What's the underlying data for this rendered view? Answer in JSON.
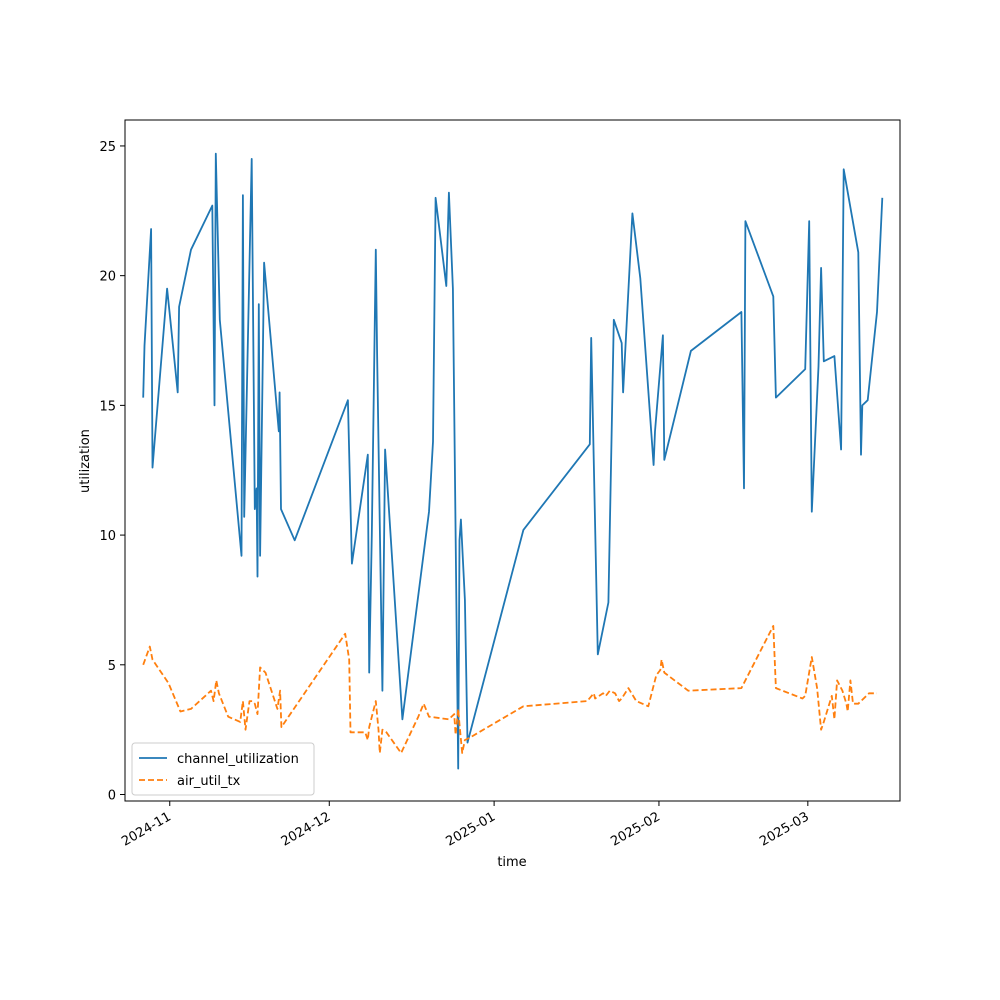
{
  "chart_data": {
    "type": "line",
    "title": "",
    "xlabel": "time",
    "ylabel": "utilization",
    "x_tick_labels": [
      "2024-11",
      "2024-12",
      "2025-01",
      "2025-02",
      "2025-03"
    ],
    "x_tick_dates": [
      "2024-11-01",
      "2024-12-01",
      "2025-01-01",
      "2025-02-01",
      "2025-03-01"
    ],
    "y_ticks": [
      0,
      5,
      10,
      15,
      20,
      25
    ],
    "x_range": [
      "2024-10-23T14:00",
      "2025-03-18T08:00"
    ],
    "ylim": [
      -0.25,
      26.0
    ],
    "grid": false,
    "legend_position": "lower-left",
    "series": [
      {
        "name": "channel_utilization",
        "color": "#1f77b4",
        "style": "solid",
        "points": [
          [
            "2024-10-27T00:00",
            15.3
          ],
          [
            "2024-10-27T06:00",
            17.3
          ],
          [
            "2024-10-28T12:00",
            21.8
          ],
          [
            "2024-10-28T18:00",
            12.6
          ],
          [
            "2024-10-31T12:00",
            19.5
          ],
          [
            "2024-11-01T00:00",
            18.5
          ],
          [
            "2024-11-02T12:00",
            15.5
          ],
          [
            "2024-11-02T18:00",
            18.8
          ],
          [
            "2024-11-05T00:00",
            21.0
          ],
          [
            "2024-11-09T00:00",
            22.7
          ],
          [
            "2024-11-09T10:00",
            15.0
          ],
          [
            "2024-11-09T16:00",
            24.7
          ],
          [
            "2024-11-10T10:00",
            18.3
          ],
          [
            "2024-11-14T12:00",
            9.2
          ],
          [
            "2024-11-14T18:00",
            23.1
          ],
          [
            "2024-11-15T00:00",
            10.7
          ],
          [
            "2024-11-16T10:00",
            24.5
          ],
          [
            "2024-11-17T00:00",
            11.0
          ],
          [
            "2024-11-17T08:00",
            11.8
          ],
          [
            "2024-11-17T12:00",
            8.4
          ],
          [
            "2024-11-17T18:00",
            18.9
          ],
          [
            "2024-11-18T00:00",
            9.2
          ],
          [
            "2024-11-18T18:00",
            20.5
          ],
          [
            "2024-11-21T12:00",
            14.0
          ],
          [
            "2024-11-21T16:00",
            15.5
          ],
          [
            "2024-11-21T22:00",
            11.0
          ],
          [
            "2024-11-24T12:00",
            9.8
          ],
          [
            "2024-12-04T12:00",
            15.2
          ],
          [
            "2024-12-05T06:00",
            8.9
          ],
          [
            "2024-12-08T06:00",
            13.1
          ],
          [
            "2024-12-08T12:00",
            4.7
          ],
          [
            "2024-12-09T00:00",
            10.0
          ],
          [
            "2024-12-09T18:00",
            21.0
          ],
          [
            "2024-12-10T00:00",
            17.0
          ],
          [
            "2024-12-11T00:00",
            4.0
          ],
          [
            "2024-12-11T12:00",
            13.3
          ],
          [
            "2024-12-14T18:00",
            2.9
          ],
          [
            "2024-12-19T18:00",
            10.9
          ],
          [
            "2024-12-20T12:00",
            13.6
          ],
          [
            "2024-12-21T00:00",
            23.0
          ],
          [
            "2024-12-23T00:00",
            19.6
          ],
          [
            "2024-12-23T12:00",
            23.2
          ],
          [
            "2024-12-24T06:00",
            19.5
          ],
          [
            "2024-12-25T06:00",
            1.0
          ],
          [
            "2024-12-25T12:00",
            9.8
          ],
          [
            "2024-12-25T18:00",
            10.6
          ],
          [
            "2024-12-26T12:00",
            7.5
          ],
          [
            "2024-12-27T00:00",
            2.0
          ],
          [
            "2025-01-06T12:00",
            10.2
          ],
          [
            "2025-01-19T00:00",
            13.5
          ],
          [
            "2025-01-19T06:00",
            17.6
          ],
          [
            "2025-01-20T12:00",
            5.4
          ],
          [
            "2025-01-22T12:00",
            7.4
          ],
          [
            "2025-01-23T12:00",
            18.3
          ],
          [
            "2025-01-25T00:00",
            17.4
          ],
          [
            "2025-01-25T06:00",
            15.5
          ],
          [
            "2025-01-27T00:00",
            22.4
          ],
          [
            "2025-01-28T12:00",
            19.9
          ],
          [
            "2025-01-31T00:00",
            12.7
          ],
          [
            "2025-01-31T06:00",
            14.0
          ],
          [
            "2025-02-01T18:00",
            17.7
          ],
          [
            "2025-02-02T00:00",
            12.9
          ],
          [
            "2025-02-07T00:00",
            17.1
          ],
          [
            "2025-02-16T12:00",
            18.6
          ],
          [
            "2025-02-17T00:00",
            11.8
          ],
          [
            "2025-02-17T06:00",
            22.1
          ],
          [
            "2025-02-22T12:00",
            19.2
          ],
          [
            "2025-02-23T00:00",
            15.3
          ],
          [
            "2025-02-28T12:00",
            16.4
          ],
          [
            "2025-03-01T06:00",
            22.1
          ],
          [
            "2025-03-01T18:00",
            10.9
          ],
          [
            "2025-03-03T00:00",
            16.5
          ],
          [
            "2025-03-03T12:00",
            20.3
          ],
          [
            "2025-03-04T00:00",
            16.7
          ],
          [
            "2025-03-06T00:00",
            16.9
          ],
          [
            "2025-03-07T06:00",
            13.3
          ],
          [
            "2025-03-07T18:00",
            24.1
          ],
          [
            "2025-03-10T12:00",
            20.9
          ],
          [
            "2025-03-11T00:00",
            13.1
          ],
          [
            "2025-03-11T06:00",
            15.0
          ],
          [
            "2025-03-12T06:00",
            15.2
          ],
          [
            "2025-03-14T00:00",
            18.6
          ],
          [
            "2025-03-15T00:00",
            23.0
          ]
        ]
      },
      {
        "name": "air_util_tx",
        "color": "#ff7f0e",
        "style": "dashed",
        "points": [
          [
            "2024-10-27T00:00",
            5.0
          ],
          [
            "2024-10-28T06:00",
            5.7
          ],
          [
            "2024-10-28T18:00",
            5.2
          ],
          [
            "2024-10-31T18:00",
            4.3
          ],
          [
            "2024-11-03T00:00",
            3.2
          ],
          [
            "2024-11-05T00:00",
            3.3
          ],
          [
            "2024-11-08T18:00",
            4.0
          ],
          [
            "2024-11-09T06:00",
            3.6
          ],
          [
            "2024-11-09T18:00",
            4.4
          ],
          [
            "2024-11-10T06:00",
            3.9
          ],
          [
            "2024-11-12T00:00",
            3.0
          ],
          [
            "2024-11-14T06:00",
            2.8
          ],
          [
            "2024-11-14T18:00",
            3.6
          ],
          [
            "2024-11-15T06:00",
            2.5
          ],
          [
            "2024-11-16T00:00",
            3.6
          ],
          [
            "2024-11-16T12:00",
            3.6
          ],
          [
            "2024-11-17T00:00",
            3.5
          ],
          [
            "2024-11-17T12:00",
            3.1
          ],
          [
            "2024-11-18T00:00",
            4.9
          ],
          [
            "2024-11-19T00:00",
            4.7
          ],
          [
            "2024-11-21T06:00",
            3.3
          ],
          [
            "2024-11-21T18:00",
            4.0
          ],
          [
            "2024-11-22T00:00",
            2.6
          ],
          [
            "2024-11-23T00:00",
            2.9
          ],
          [
            "2024-12-04T00:00",
            6.2
          ],
          [
            "2024-12-04T18:00",
            5.2
          ],
          [
            "2024-12-05T00:00",
            2.4
          ],
          [
            "2024-12-07T18:00",
            2.4
          ],
          [
            "2024-12-08T06:00",
            2.1
          ],
          [
            "2024-12-08T12:00",
            2.6
          ],
          [
            "2024-12-09T18:00",
            3.6
          ],
          [
            "2024-12-10T06:00",
            2.5
          ],
          [
            "2024-12-10T12:00",
            1.6
          ],
          [
            "2024-12-11T00:00",
            2.5
          ],
          [
            "2024-12-11T18:00",
            2.4
          ],
          [
            "2024-12-14T12:00",
            1.6
          ],
          [
            "2024-12-17T18:00",
            3.0
          ],
          [
            "2024-12-18T18:00",
            3.5
          ],
          [
            "2024-12-19T18:00",
            3.0
          ],
          [
            "2024-12-23T12:00",
            2.9
          ],
          [
            "2024-12-24T12:00",
            3.1
          ],
          [
            "2024-12-24T18:00",
            2.3
          ],
          [
            "2024-12-25T06:00",
            3.3
          ],
          [
            "2024-12-25T12:00",
            2.7
          ],
          [
            "2024-12-26T00:00",
            1.6
          ],
          [
            "2024-12-26T12:00",
            2.1
          ],
          [
            "2024-12-27T12:00",
            2.2
          ],
          [
            "2025-01-06T12:00",
            3.4
          ],
          [
            "2025-01-18T12:00",
            3.6
          ],
          [
            "2025-01-19T18:00",
            3.9
          ],
          [
            "2025-01-20T00:00",
            3.7
          ],
          [
            "2025-01-21T12:00",
            3.9
          ],
          [
            "2025-01-22T00:00",
            3.8
          ],
          [
            "2025-01-22T18:00",
            4.0
          ],
          [
            "2025-01-23T18:00",
            3.9
          ],
          [
            "2025-01-24T12:00",
            3.6
          ],
          [
            "2025-01-25T00:00",
            3.7
          ],
          [
            "2025-01-26T06:00",
            4.1
          ],
          [
            "2025-01-27T18:00",
            3.6
          ],
          [
            "2025-01-30T00:00",
            3.4
          ],
          [
            "2025-01-31T12:00",
            4.6
          ],
          [
            "2025-02-01T06:00",
            4.8
          ],
          [
            "2025-02-01T12:00",
            5.2
          ],
          [
            "2025-02-02T00:00",
            4.7
          ],
          [
            "2025-02-06T12:00",
            4.0
          ],
          [
            "2025-02-16T12:00",
            4.1
          ],
          [
            "2025-02-22T12:00",
            6.5
          ],
          [
            "2025-02-23T00:00",
            4.1
          ],
          [
            "2025-02-28T00:00",
            3.7
          ],
          [
            "2025-02-28T12:00",
            3.8
          ],
          [
            "2025-03-01T18:00",
            5.3
          ],
          [
            "2025-03-02T18:00",
            4.1
          ],
          [
            "2025-03-03T12:00",
            2.5
          ],
          [
            "2025-03-04T00:00",
            2.8
          ],
          [
            "2025-03-05T12:00",
            3.8
          ],
          [
            "2025-03-06T00:00",
            2.9
          ],
          [
            "2025-03-06T12:00",
            4.4
          ],
          [
            "2025-03-07T12:00",
            4.0
          ],
          [
            "2025-03-08T06:00",
            3.5
          ],
          [
            "2025-03-08T12:00",
            3.2
          ],
          [
            "2025-03-09T00:00",
            4.4
          ],
          [
            "2025-03-09T12:00",
            3.5
          ],
          [
            "2025-03-10T12:00",
            3.5
          ],
          [
            "2025-03-12T12:00",
            3.9
          ],
          [
            "2025-03-14T00:00",
            3.9
          ]
        ]
      }
    ]
  }
}
